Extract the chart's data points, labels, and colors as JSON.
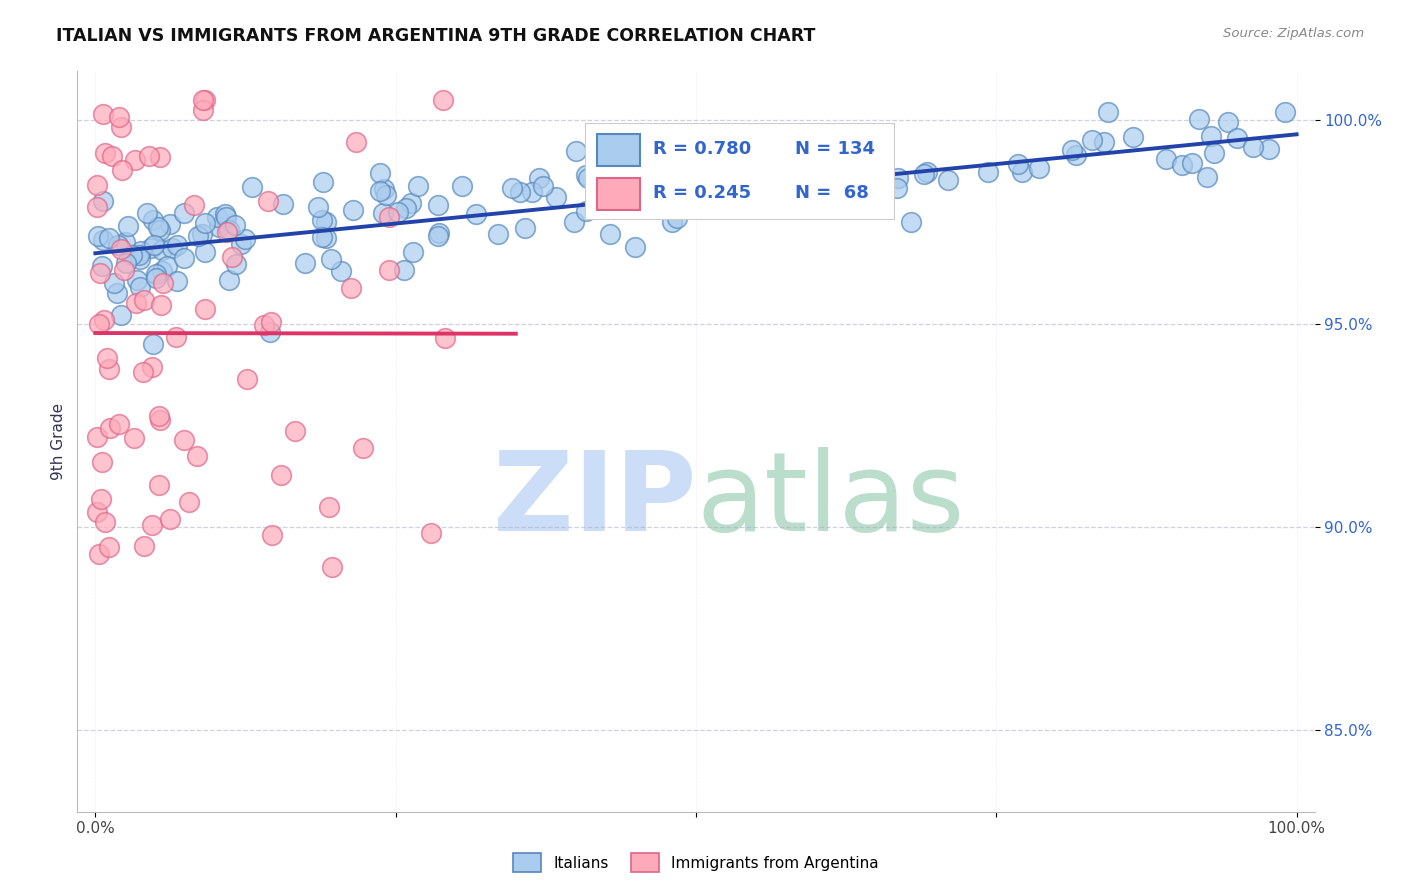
{
  "title": "ITALIAN VS IMMIGRANTS FROM ARGENTINA 9TH GRADE CORRELATION CHART",
  "source_text": "Source: ZipAtlas.com",
  "ylabel": "9th Grade",
  "xlim": [
    -1.5,
    101.5
  ],
  "ylim": [
    83.0,
    101.2
  ],
  "yticks": [
    85.0,
    90.0,
    95.0,
    100.0
  ],
  "ytick_labels": [
    "85.0%",
    "90.0%",
    "95.0%",
    "100.0%"
  ],
  "xticks": [
    0.0,
    25.0,
    50.0,
    75.0,
    100.0
  ],
  "xtick_labels": [
    "0.0%",
    "",
    "",
    "",
    "100.0%"
  ],
  "blue_R": 0.78,
  "blue_N": 134,
  "pink_R": 0.245,
  "pink_N": 68,
  "blue_color": "#aaccee",
  "blue_edge": "#5588bb",
  "pink_color": "#ffaabb",
  "pink_edge": "#dd6688",
  "blue_line_color": "#2244aa",
  "pink_line_color": "#dd3366",
  "legend_label_blue": "Italians",
  "legend_label_pink": "Immigrants from Argentina",
  "watermark_zip_color": "#ccddf8",
  "watermark_atlas_color": "#bbddcc",
  "title_color": "#111111",
  "ylabel_color": "#333355",
  "ytick_color": "#3366cc",
  "source_color": "#888888"
}
